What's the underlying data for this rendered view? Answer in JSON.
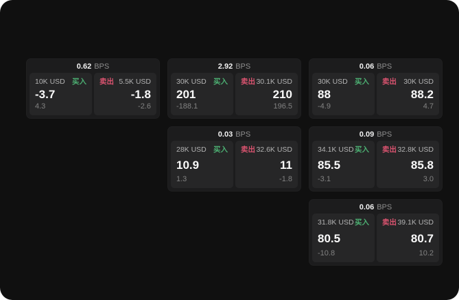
{
  "labels": {
    "bps_unit": "BPS",
    "buy": "买入",
    "sell": "卖出"
  },
  "colors": {
    "buy_green": "#4caf72",
    "sell_red": "#d9536f",
    "surface": "#101010",
    "card_bg": "#1c1c1d",
    "panel_bg": "#262627"
  },
  "cards": [
    {
      "slot": {
        "row": 1,
        "col": 1
      },
      "bps": "0.62",
      "buy": {
        "size": "10K USD",
        "value": "-3.7",
        "delta": "4.3"
      },
      "sell": {
        "size": "5.5K USD",
        "value": "-1.8",
        "delta": "-2.6"
      }
    },
    {
      "slot": {
        "row": 1,
        "col": 2
      },
      "bps": "2.92",
      "buy": {
        "size": "30K USD",
        "value": "201",
        "delta": "-188.1"
      },
      "sell": {
        "size": "30.1K USD",
        "value": "210",
        "delta": "196.5"
      }
    },
    {
      "slot": {
        "row": 1,
        "col": 3
      },
      "bps": "0.06",
      "buy": {
        "size": "30K USD",
        "value": "88",
        "delta": "-4.9"
      },
      "sell": {
        "size": "30K USD",
        "value": "88.2",
        "delta": "4.7"
      }
    },
    {
      "slot": {
        "row": 2,
        "col": 2
      },
      "bps": "0.03",
      "buy": {
        "size": "28K USD",
        "value": "10.9",
        "delta": "1.3"
      },
      "sell": {
        "size": "32.6K USD",
        "value": "11",
        "delta": "-1.8"
      }
    },
    {
      "slot": {
        "row": 2,
        "col": 3
      },
      "bps": "0.09",
      "buy": {
        "size": "34.1K USD",
        "value": "85.5",
        "delta": "-3.1"
      },
      "sell": {
        "size": "32.8K USD",
        "value": "85.8",
        "delta": "3.0"
      }
    },
    {
      "slot": {
        "row": 3,
        "col": 3
      },
      "bps": "0.06",
      "buy": {
        "size": "31.8K USD",
        "value": "80.5",
        "delta": "-10.8"
      },
      "sell": {
        "size": "39.1K USD",
        "value": "80.7",
        "delta": "10.2"
      }
    }
  ]
}
